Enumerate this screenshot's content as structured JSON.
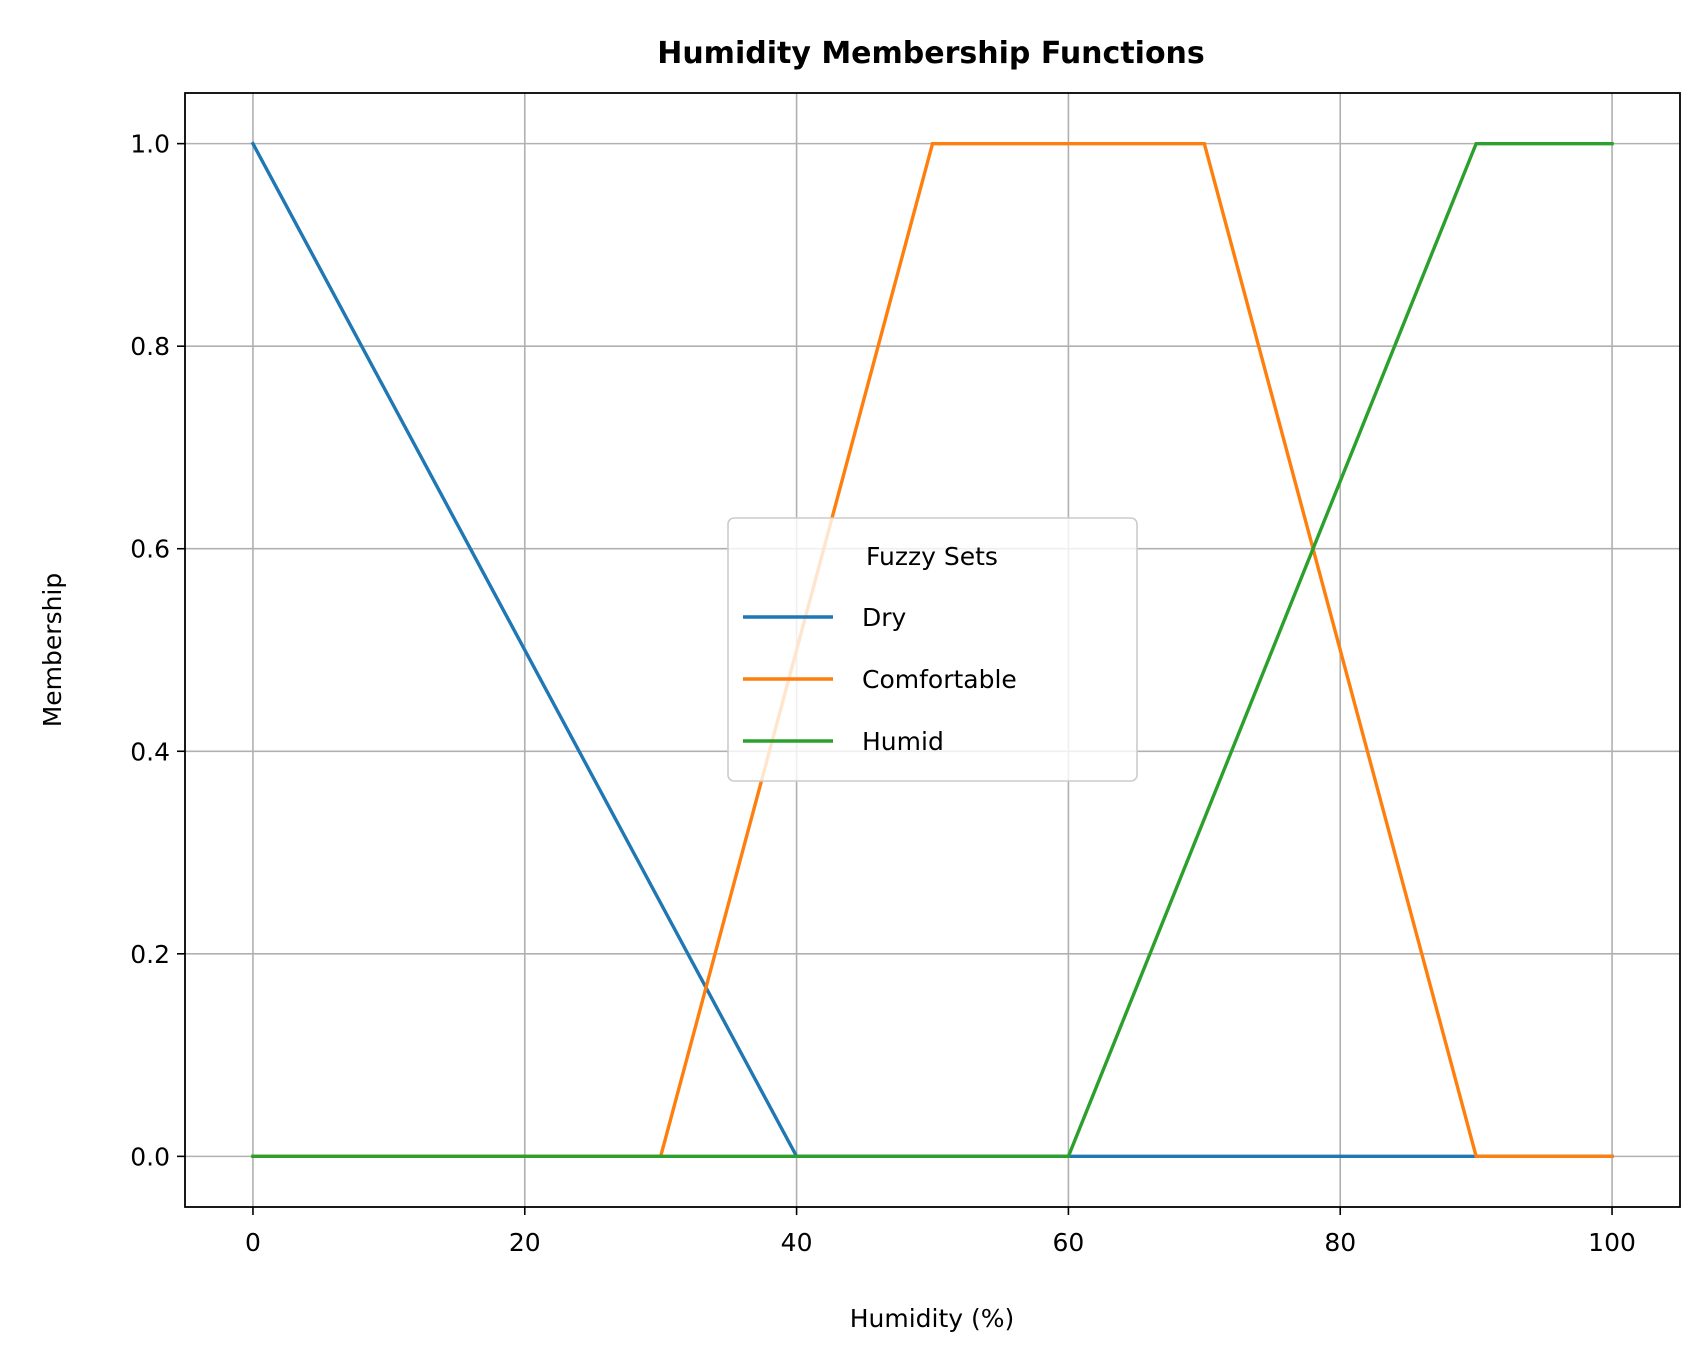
{
  "chart_data": {
    "type": "line",
    "title": "Humidity Membership Functions",
    "xlabel": "Humidity (%)",
    "ylabel": "Membership",
    "xlim": [
      -5,
      105
    ],
    "ylim": [
      -0.05,
      1.05
    ],
    "xticks": [
      0,
      20,
      40,
      60,
      80,
      100
    ],
    "xtick_labels": [
      "0",
      "20",
      "40",
      "60",
      "80",
      "100"
    ],
    "yticks": [
      0.0,
      0.2,
      0.4,
      0.6,
      0.8,
      1.0
    ],
    "ytick_labels": [
      "0.0",
      "0.2",
      "0.4",
      "0.6",
      "0.8",
      "1.0"
    ],
    "grid": true,
    "legend": {
      "title": "Fuzzy Sets",
      "placement": "center"
    },
    "series": [
      {
        "name": "Dry",
        "color": "#1f77b4",
        "x": [
          0,
          40,
          100
        ],
        "y": [
          1.0,
          0.0,
          0.0
        ]
      },
      {
        "name": "Comfortable",
        "color": "#ff7f0e",
        "x": [
          0,
          30,
          50,
          70,
          90,
          100
        ],
        "y": [
          0.0,
          0.0,
          1.0,
          1.0,
          0.0,
          0.0
        ]
      },
      {
        "name": "Humid",
        "color": "#2ca02c",
        "x": [
          0,
          60,
          90,
          100
        ],
        "y": [
          0.0,
          0.0,
          1.0,
          1.0
        ]
      }
    ]
  }
}
